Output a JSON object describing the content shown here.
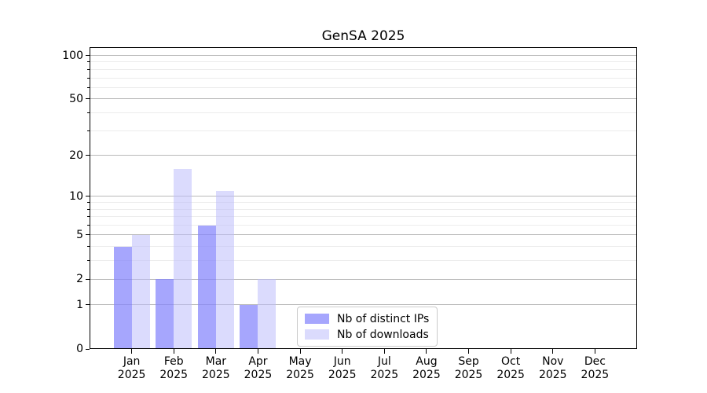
{
  "page_title": "GenSA 2025",
  "chart_data": {
    "type": "bar",
    "title": "GenSA 2025",
    "scale": "log1p",
    "grid": "on",
    "ylim": [
      0,
      114
    ],
    "y_major_ticks": [
      0,
      1,
      2,
      5,
      10,
      20,
      50,
      100
    ],
    "y_minor_ticks": [
      3,
      4,
      6,
      7,
      8,
      9,
      30,
      40,
      60,
      70,
      80,
      90
    ],
    "categories": [
      {
        "month": "Jan",
        "year": "2025"
      },
      {
        "month": "Feb",
        "year": "2025"
      },
      {
        "month": "Mar",
        "year": "2025"
      },
      {
        "month": "Apr",
        "year": "2025"
      },
      {
        "month": "May",
        "year": "2025"
      },
      {
        "month": "Jun",
        "year": "2025"
      },
      {
        "month": "Jul",
        "year": "2025"
      },
      {
        "month": "Aug",
        "year": "2025"
      },
      {
        "month": "Sep",
        "year": "2025"
      },
      {
        "month": "Oct",
        "year": "2025"
      },
      {
        "month": "Nov",
        "year": "2025"
      },
      {
        "month": "Dec",
        "year": "2025"
      }
    ],
    "series": [
      {
        "name": "Nb of distinct IPs",
        "color_hex": "#a9a9fb",
        "fill": "rgba(132,132,252,0.72)",
        "values": [
          4,
          2,
          6,
          1,
          0,
          0,
          0,
          0,
          0,
          0,
          0,
          0
        ]
      },
      {
        "name": "Nb of downloads",
        "color_hex": "#dadafb",
        "fill": "rgba(190,190,251,0.55)",
        "values": [
          5,
          16,
          11,
          2,
          0,
          0,
          0,
          0,
          0,
          0,
          0,
          0
        ]
      }
    ],
    "legend_position": "lower center-left inside plot",
    "grid_colors": {
      "major": "#b9b9b9",
      "minor": "#ececec"
    }
  }
}
